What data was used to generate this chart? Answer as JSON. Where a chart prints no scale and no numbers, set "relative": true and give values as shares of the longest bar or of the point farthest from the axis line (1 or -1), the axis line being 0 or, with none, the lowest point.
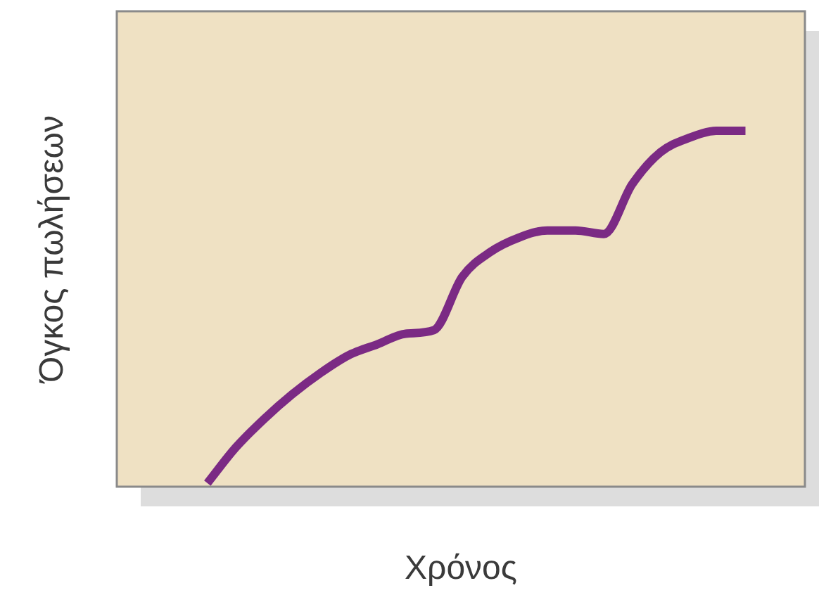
{
  "chart_data": {
    "type": "line",
    "relative": true,
    "xlabel": "Χρόνος",
    "ylabel": "Όγκος πωλήσεων",
    "categories": [
      null,
      null,
      null,
      null,
      null,
      null,
      null,
      null,
      null,
      null,
      null,
      null,
      null,
      null,
      null,
      null,
      null,
      null,
      null,
      null
    ],
    "series": [
      {
        "color": "#7b2a84",
        "values": [
          0.01,
          0.11,
          0.19,
          0.26,
          0.32,
          0.37,
          0.4,
          0.43,
          0.44,
          0.59,
          0.66,
          0.7,
          0.72,
          0.72,
          0.71,
          0.85,
          0.94,
          0.98,
          1.0,
          1.0
        ]
      }
    ],
    "legend": false,
    "marker": "none",
    "line_style": "solid"
  }
}
